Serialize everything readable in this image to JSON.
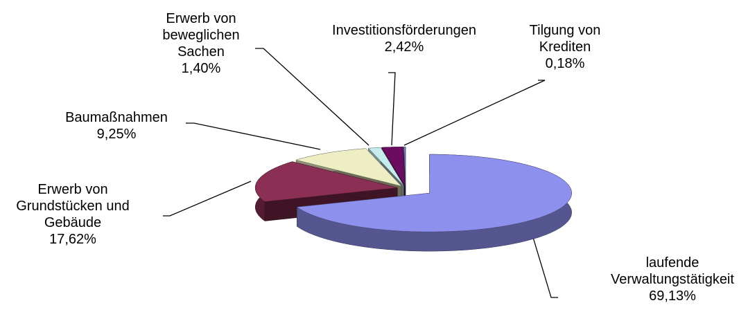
{
  "chart_data": {
    "type": "pie",
    "categories": [
      "laufende\nVerwaltungstätigkeit",
      "Erwerb von\nGrundstücken und\nGebäude",
      "Baumaßnahmen",
      "Erwerb von\nbeweglichen\nSachen",
      "Investitionsförderungen",
      "Tilgung von\nKrediten"
    ],
    "values": [
      69.13,
      17.62,
      9.25,
      1.4,
      2.42,
      0.18
    ],
    "value_labels": [
      "69,13%",
      "17,62%",
      "9,25%",
      "1,40%",
      "2,42%",
      "0,18%"
    ],
    "colors": [
      "#8e90ee",
      "#8c2f55",
      "#eeeec4",
      "#c6ecee",
      "#6c0c60",
      "#7088c8"
    ]
  }
}
